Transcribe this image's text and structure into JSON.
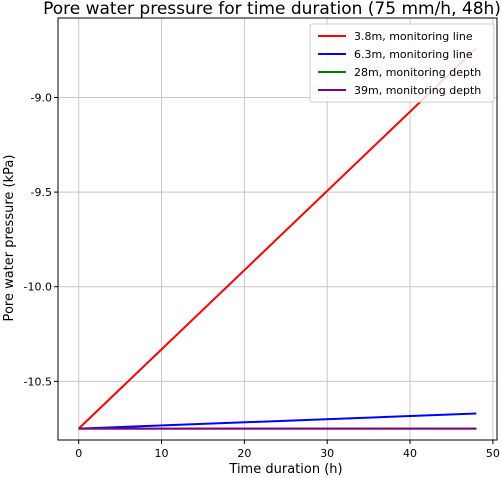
{
  "chart_data": {
    "type": "line",
    "title": "Pore water pressure for time duration (75 mm/h, 48h)",
    "xlabel": "Time duration (h)",
    "ylabel": "Pore water pressure (kPa)",
    "xlim": [
      -2.5,
      50.5
    ],
    "ylim": [
      -10.81,
      -8.58
    ],
    "xticks": [
      0,
      10,
      20,
      30,
      40,
      50
    ],
    "xtick_labels": [
      "0",
      "10",
      "20",
      "30",
      "40",
      "50"
    ],
    "yticks": [
      -10.5,
      -10.0,
      -9.5,
      -9.0
    ],
    "ytick_labels": [
      "-10.5",
      "-10.0",
      "-9.5",
      "-9.0"
    ],
    "grid": true,
    "legend_position": "top-right",
    "series": [
      {
        "name": "3.8m, monitoring line",
        "color": "#ff0000",
        "x": [
          0,
          48
        ],
        "y": [
          -10.75,
          -8.74
        ]
      },
      {
        "name": "6.3m, monitoring line",
        "color": "#0000ff",
        "x": [
          0,
          48
        ],
        "y": [
          -10.75,
          -10.67
        ]
      },
      {
        "name": "28m, monitoring depth",
        "color": "#008000",
        "x": [
          0,
          48
        ],
        "y": [
          -10.75,
          -10.75
        ]
      },
      {
        "name": "39m, monitoring depth",
        "color": "#800080",
        "x": [
          0,
          48
        ],
        "y": [
          -10.75,
          -10.75
        ]
      }
    ]
  }
}
